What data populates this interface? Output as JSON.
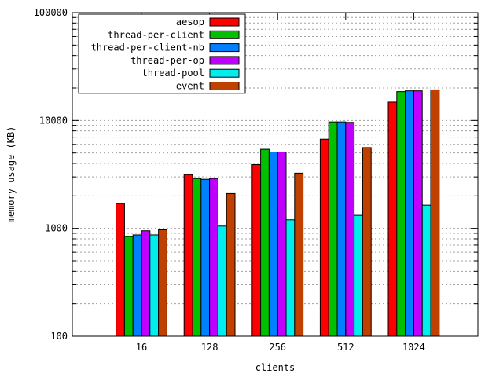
{
  "chart_data": {
    "type": "bar",
    "title": "",
    "xlabel": "clients",
    "ylabel": "memory usage (KB)",
    "yscale": "log",
    "ylim": [
      100,
      100000
    ],
    "yticks": [
      {
        "value": 100,
        "label": "100"
      },
      {
        "value": 1000,
        "label": "1000"
      },
      {
        "value": 10000,
        "label": "10000"
      },
      {
        "value": 100000,
        "label": "100000"
      }
    ],
    "grid": true,
    "legend_position": "top-left",
    "categories": [
      "16",
      "128",
      "256",
      "512",
      "1024"
    ],
    "series": [
      {
        "name": "aesop",
        "color": "#ff0000",
        "values": [
          1700,
          3150,
          3900,
          6700,
          14800
        ]
      },
      {
        "name": "thread-per-client",
        "color": "#00c000",
        "values": [
          840,
          2900,
          5400,
          9700,
          18500
        ]
      },
      {
        "name": "thread-per-client-nb",
        "color": "#0080ff",
        "values": [
          870,
          2850,
          5100,
          9700,
          18800
        ]
      },
      {
        "name": "thread-per-op",
        "color": "#c000ff",
        "values": [
          950,
          2900,
          5100,
          9600,
          18800
        ]
      },
      {
        "name": "thread-pool",
        "color": "#00eeee",
        "values": [
          870,
          1050,
          1200,
          1320,
          1640
        ]
      },
      {
        "name": "event",
        "color": "#c04000",
        "values": [
          970,
          2100,
          3250,
          5600,
          19200
        ]
      }
    ]
  }
}
